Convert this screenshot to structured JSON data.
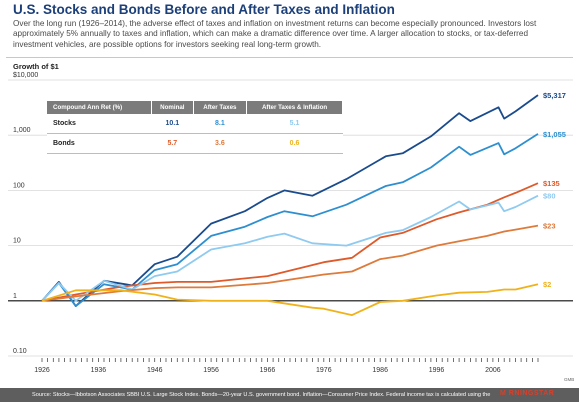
{
  "title": "U.S. Stocks and Bonds Before and After Taxes and Inflation",
  "intro": "Over the long run (1926–2014), the adverse effect of taxes and inflation on investment returns can become especially pronounced. Investors lost approximately 5% annually to taxes and inflation, which can make a dramatic difference over time. A larger allocation to stocks, or tax-deferred investment vehicles, are possible options for investors seeking real long-term growth.",
  "y_unit": "Growth of $1",
  "table": {
    "headers": [
      "Compound Ann Ret (%)",
      "Nominal",
      "After Taxes",
      "After Taxes & Inflation"
    ],
    "rows": [
      {
        "label": "Stocks",
        "nominal": "10.1",
        "after_taxes": "8.1",
        "after_taxes_inflation": "5.1"
      },
      {
        "label": "Bonds",
        "nominal": "5.7",
        "after_taxes": "3.6",
        "after_taxes_inflation": "0.6"
      }
    ]
  },
  "footnote": "Source: Stocks—Ibbotson Associates SBBI U.S. Large Stock Index. Bonds—20-year U.S. government bond. Inflation—Consumer Price Index. Federal income tax is calculated using the",
  "logo": "M RNINGSTAR",
  "credit": "GMB",
  "colors": {
    "stocks_nominal": "#1a4b8c",
    "stocks_after_taxes": "#2d8fd0",
    "stocks_after_taxes_inflation": "#8fcaf0",
    "bonds_nominal": "#de5a2a",
    "bonds_after_taxes": "#de7a3a",
    "bonds_after_taxes_inflation": "#f0b21a"
  },
  "chart_data": {
    "type": "line",
    "title": "",
    "xlabel": "",
    "ylabel": "Growth of $1",
    "y_scale": "log",
    "ylim": [
      0.1,
      10000
    ],
    "xlim": [
      1926,
      2014
    ],
    "yticks": [
      {
        "value": 10000,
        "label": "$10,000"
      },
      {
        "value": 1000,
        "label": "1,000"
      },
      {
        "value": 100,
        "label": "100"
      },
      {
        "value": 10,
        "label": "10"
      },
      {
        "value": 1,
        "label": "1"
      },
      {
        "value": 0.1,
        "label": "0.10"
      }
    ],
    "xticks": [
      1926,
      1936,
      1946,
      1956,
      1966,
      1976,
      1986,
      1996,
      2006
    ],
    "reference_line": 1,
    "grid": true,
    "series": [
      {
        "key": "stocks_nominal",
        "end_label": "$5,317",
        "x": [
          1926,
          1929,
          1932,
          1937,
          1942,
          1946,
          1950,
          1956,
          1962,
          1966,
          1969,
          1974,
          1980,
          1987,
          1990,
          1995,
          2000,
          2002,
          2007,
          2008,
          2010,
          2014
        ],
        "y": [
          1,
          2.2,
          0.8,
          2.3,
          1.9,
          4.6,
          6.3,
          25,
          42,
          73,
          100,
          80,
          160,
          415,
          470,
          950,
          2500,
          1800,
          3200,
          2000,
          2700,
          5317
        ]
      },
      {
        "key": "stocks_after_taxes",
        "end_label": "$1,055",
        "x": [
          1926,
          1929,
          1932,
          1937,
          1942,
          1946,
          1950,
          1956,
          1962,
          1966,
          1969,
          1974,
          1980,
          1987,
          1990,
          1995,
          2000,
          2002,
          2007,
          2008,
          2010,
          2014
        ],
        "y": [
          1,
          2.1,
          0.8,
          2,
          1.6,
          3.6,
          4.6,
          15,
          22,
          33,
          42,
          34,
          55,
          120,
          140,
          260,
          620,
          440,
          720,
          450,
          580,
          1055
        ]
      },
      {
        "key": "bonds_nominal",
        "end_label": "$135",
        "x": [
          1926,
          1932,
          1940,
          1946,
          1950,
          1956,
          1966,
          1976,
          1981,
          1986,
          1990,
          1996,
          2000,
          2005,
          2008,
          2010,
          2014
        ],
        "y": [
          1,
          1.3,
          1.8,
          2.1,
          2.2,
          2.2,
          2.8,
          5,
          6,
          14,
          17,
          30,
          40,
          55,
          75,
          90,
          135
        ]
      },
      {
        "key": "stocks_after_taxes_inflation",
        "end_label": "$80",
        "x": [
          1926,
          1929,
          1932,
          1937,
          1942,
          1946,
          1950,
          1956,
          1962,
          1966,
          1969,
          1974,
          1980,
          1987,
          1990,
          1995,
          2000,
          2002,
          2007,
          2008,
          2010,
          2014
        ],
        "y": [
          1,
          2.1,
          1,
          2.3,
          1.6,
          2.8,
          3.4,
          8.5,
          11,
          14.5,
          16.5,
          11,
          10,
          17,
          19,
          33,
          63,
          45,
          60,
          42,
          50,
          80
        ]
      },
      {
        "key": "bonds_after_taxes",
        "end_label": "$23",
        "x": [
          1926,
          1932,
          1940,
          1946,
          1950,
          1956,
          1966,
          1976,
          1981,
          1986,
          1990,
          1996,
          2000,
          2005,
          2008,
          2010,
          2014
        ],
        "y": [
          1,
          1.2,
          1.5,
          1.7,
          1.75,
          1.75,
          2.1,
          3,
          3.4,
          5.7,
          6.6,
          10,
          12,
          15,
          18,
          19.5,
          23
        ]
      },
      {
        "key": "bonds_after_taxes_inflation",
        "end_label": "$2",
        "x": [
          1926,
          1932,
          1940,
          1946,
          1950,
          1956,
          1966,
          1974,
          1976,
          1981,
          1986,
          1990,
          1996,
          2000,
          2005,
          2008,
          2010,
          2014
        ],
        "y": [
          1,
          1.55,
          1.55,
          1.3,
          1.05,
          1,
          1,
          0.75,
          0.72,
          0.55,
          0.95,
          1,
          1.25,
          1.4,
          1.45,
          1.6,
          1.6,
          2
        ]
      }
    ]
  }
}
